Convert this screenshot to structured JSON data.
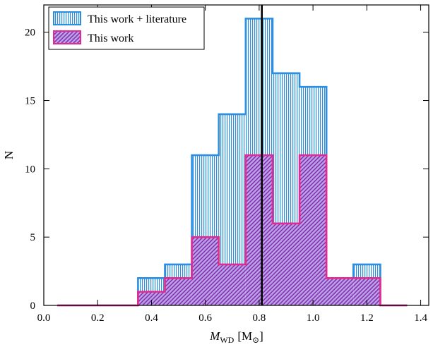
{
  "chart_data": {
    "type": "bar",
    "subtype": "histogram",
    "xlabel": "M_WD [M_⊙]",
    "xlabel_parts": {
      "symbol": "M",
      "subscript": "WD",
      "unit_open": "[M",
      "unit_sub": "⊙",
      "unit_close": "]"
    },
    "ylabel": "N",
    "xlim": [
      0.0,
      1.43
    ],
    "ylim": [
      0,
      22
    ],
    "xticks": [
      0.0,
      0.2,
      0.4,
      0.6,
      0.8,
      1.0,
      1.2,
      1.4
    ],
    "xtick_labels": [
      "0.0",
      "0.2",
      "0.4",
      "0.6",
      "0.8",
      "1.0",
      "1.2",
      "1.4"
    ],
    "yticks": [
      0,
      5,
      10,
      15,
      20
    ],
    "ytick_labels": [
      "0",
      "5",
      "10",
      "15",
      "20"
    ],
    "bin_edges": [
      0.05,
      0.15,
      0.25,
      0.35,
      0.45,
      0.55,
      0.65,
      0.75,
      0.85,
      0.95,
      1.05,
      1.15,
      1.25,
      1.35
    ],
    "series": [
      {
        "name": "This work + literature",
        "color": "#2b8ee0",
        "hatch": "vertical",
        "counts": [
          0,
          0,
          0,
          2,
          3,
          11,
          14,
          21,
          17,
          16,
          2,
          3,
          0
        ]
      },
      {
        "name": "This work",
        "color": "#e5298f",
        "hatch": "diagonal",
        "counts": [
          0,
          0,
          0,
          1,
          2,
          5,
          3,
          11,
          6,
          11,
          2,
          2,
          0
        ]
      }
    ],
    "vline": {
      "x": 0.81,
      "color": "#000000"
    },
    "legend_position": "top-left",
    "grid": false
  }
}
